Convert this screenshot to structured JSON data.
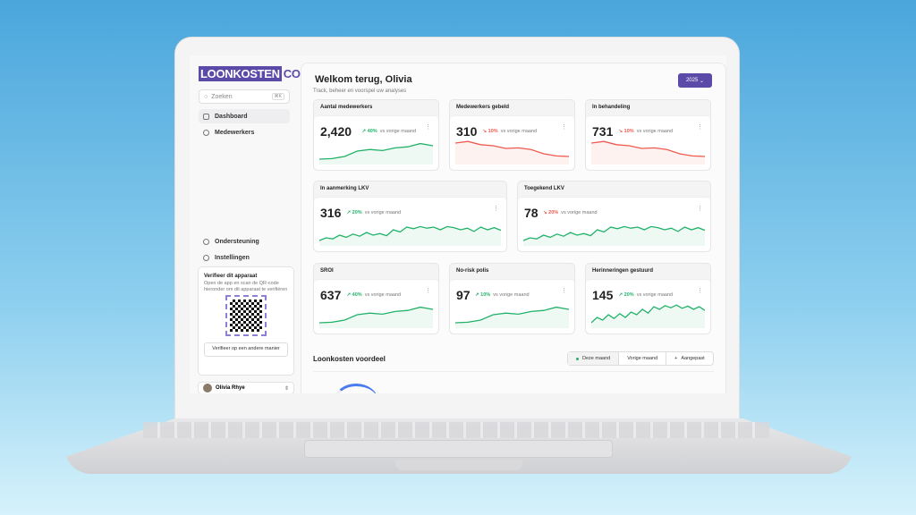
{
  "brand": {
    "logo_a": "LOONKOSTEN",
    "logo_b": "CONTROL"
  },
  "sidebar": {
    "search_placeholder": "Zoeken",
    "search_shortcut": "⌘K",
    "items": [
      {
        "label": "Dashboard",
        "icon": "chart-icon"
      },
      {
        "label": "Medewerkers",
        "icon": "users-icon"
      }
    ],
    "bottom_items": [
      {
        "label": "Ondersteuning",
        "icon": "lifebuoy-icon"
      },
      {
        "label": "Instellingen",
        "icon": "gear-icon"
      }
    ],
    "verify": {
      "title": "Verifieer dit apparaat",
      "text": "Open de app en scan de QR-code hieronder om dit apparaat te verifiëren",
      "button": "Verifieer op een andere manier"
    },
    "user": {
      "name": "Olivia Rhye"
    }
  },
  "header": {
    "title": "Welkom terug, Olivia",
    "subtitle": "Track, beheer en voorspel uw analyses",
    "year": "2025"
  },
  "colors": {
    "accent": "#5b4aa8",
    "up": "#22b26a",
    "down": "#ef5a4f"
  },
  "cards": [
    {
      "title": "Aantal medewerkers",
      "value": "2,420",
      "change": "40%",
      "trend": "up",
      "suffix": "vs vorige maand",
      "spark": [
        2,
        2.2,
        3,
        5,
        5.6,
        5.2,
        6.2,
        6.6,
        7.8,
        7
      ]
    },
    {
      "title": "Medewerkers gebeld",
      "value": "310",
      "change": "10%",
      "trend": "down",
      "suffix": "vs vorige maand",
      "spark": [
        8,
        8.6,
        7.4,
        7,
        6,
        6.2,
        5.6,
        4,
        3.2,
        3
      ]
    },
    {
      "title": "In behandeling",
      "value": "731",
      "change": "10%",
      "trend": "down",
      "suffix": "vs vorige maand",
      "spark": [
        8,
        8.6,
        7.4,
        7,
        6,
        6.2,
        5.6,
        4,
        3.2,
        3
      ]
    },
    {
      "title": "In aanmerking LKV",
      "value": "316",
      "change": "20%",
      "trend": "up",
      "suffix": "vs vorige maand",
      "spark": [
        2,
        3,
        2.6,
        4,
        3.2,
        4.4,
        3.6,
        5,
        4,
        4.6,
        3.8,
        6,
        5.2,
        7,
        6.4,
        7.2,
        6.6,
        7,
        6,
        7.2,
        6.8,
        6,
        6.6,
        5.4,
        7,
        6,
        6.8,
        5.8
      ]
    },
    {
      "title": "Toegekend LKV",
      "value": "78",
      "change": "20%",
      "trend": "down",
      "suffix": "vs vorige maand",
      "spark": [
        2,
        3,
        2.6,
        4,
        3.2,
        4.4,
        3.6,
        5,
        4,
        4.6,
        3.8,
        6,
        5.2,
        7,
        6.4,
        7.2,
        6.6,
        7,
        6,
        7.2,
        6.8,
        6,
        6.6,
        5.4,
        7,
        6,
        6.8,
        5.8
      ],
      "spark_color": "up"
    },
    {
      "title": "SROI",
      "value": "637",
      "change": "40%",
      "trend": "up",
      "suffix": "vs vorige maand",
      "spark": [
        2,
        2.2,
        3,
        5,
        5.6,
        5.2,
        6.2,
        6.6,
        7.8,
        7
      ]
    },
    {
      "title": "No-risk polis",
      "value": "97",
      "change": "10%",
      "trend": "up",
      "suffix": "vs vorige maand",
      "spark": [
        2,
        2.2,
        3,
        5,
        5.6,
        5.2,
        6.2,
        6.6,
        7.8,
        7
      ]
    },
    {
      "title": "Herinneringen gestuurd",
      "value": "145",
      "change": "20%",
      "trend": "up",
      "suffix": "vs vorige maand",
      "spark": [
        2,
        4,
        3,
        5,
        3.6,
        5.4,
        4,
        6,
        5,
        7,
        5.6,
        8,
        7,
        8.4,
        7.6,
        8.6,
        7.4,
        8.2,
        7,
        8,
        6.6
      ]
    }
  ],
  "section": {
    "title": "Loonkosten voordeel",
    "filters": [
      "Deze maand",
      "Vorige maand",
      "Aangepast"
    ]
  }
}
